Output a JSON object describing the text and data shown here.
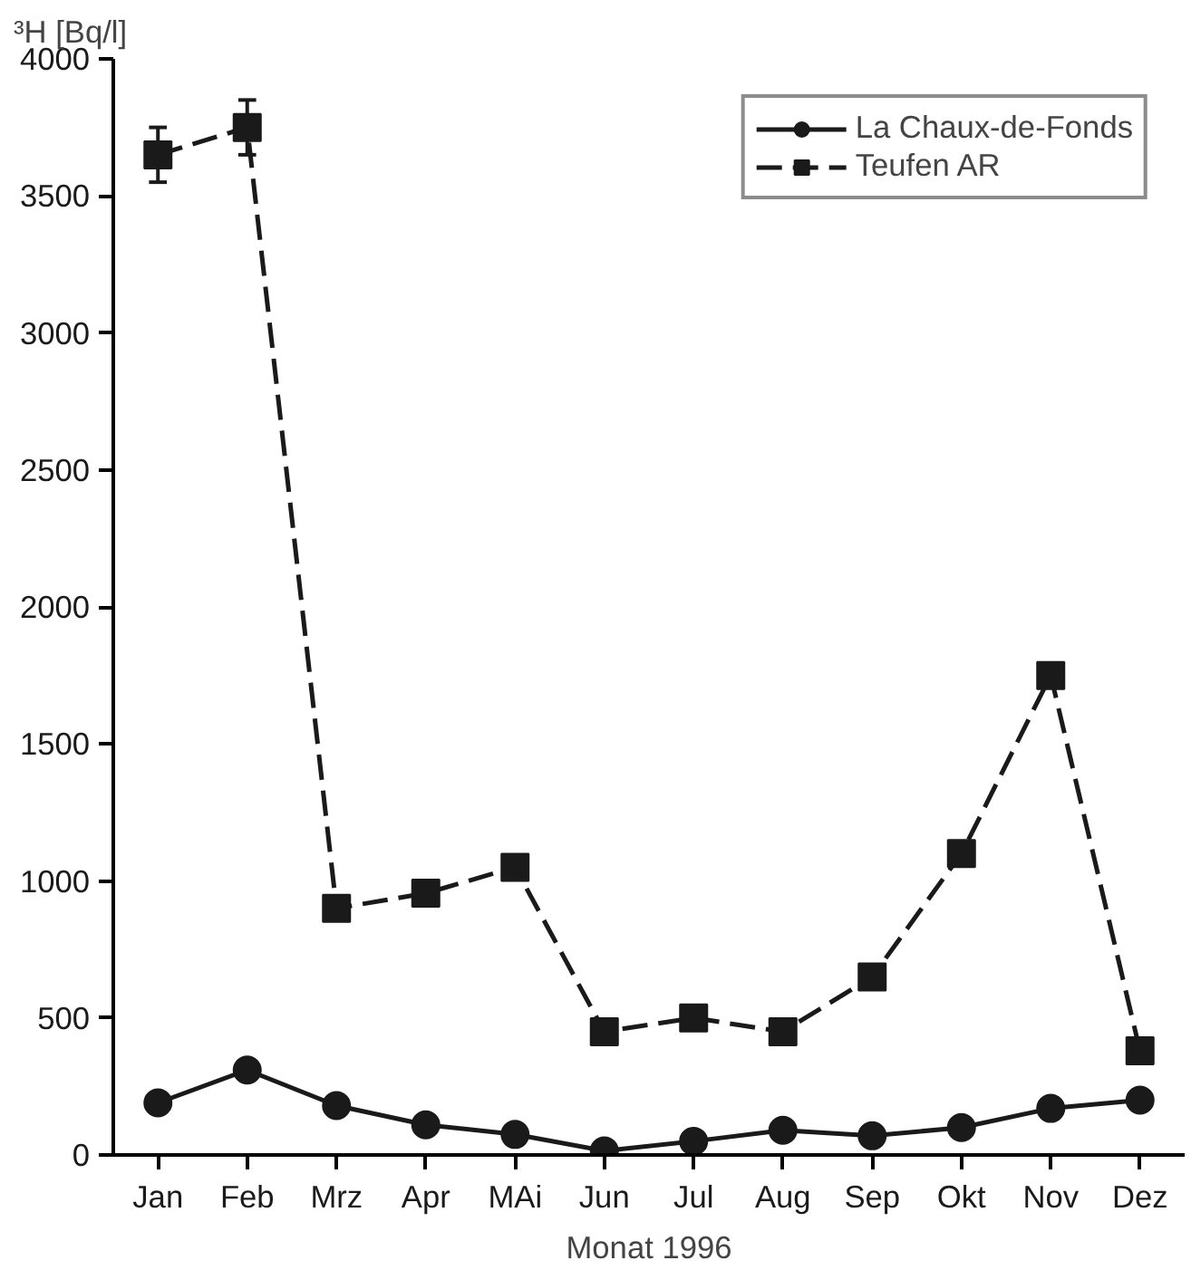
{
  "chart_data": {
    "type": "line",
    "ylabel": "³H [Bq/l]",
    "xlabel": "Monat 1996",
    "categories": [
      "Jan",
      "Feb",
      "Mrz",
      "Apr",
      "MAi",
      "Jun",
      "Jul",
      "Aug",
      "Sep",
      "Okt",
      "Nov",
      "Dez"
    ],
    "series": [
      {
        "name": "La Chaux-de-Fonds",
        "color": "#1a1a1a",
        "marker": "circle",
        "line_style": "solid",
        "values": [
          190,
          310,
          180,
          110,
          75,
          15,
          50,
          90,
          70,
          100,
          170,
          200
        ]
      },
      {
        "name": "Teufen AR",
        "color": "#1a1a1a",
        "marker": "square",
        "line_style": "dashed",
        "values": [
          3650,
          3750,
          900,
          955,
          1050,
          450,
          500,
          450,
          650,
          1100,
          1750,
          380
        ],
        "errors": [
          100,
          100,
          null,
          null,
          null,
          null,
          null,
          null,
          null,
          null,
          null,
          null
        ]
      }
    ],
    "ylim": [
      0,
      4000
    ],
    "yticks": [
      0,
      500,
      1000,
      1500,
      2000,
      2500,
      3000,
      3500,
      4000
    ],
    "grid": false,
    "legend": "top right"
  }
}
